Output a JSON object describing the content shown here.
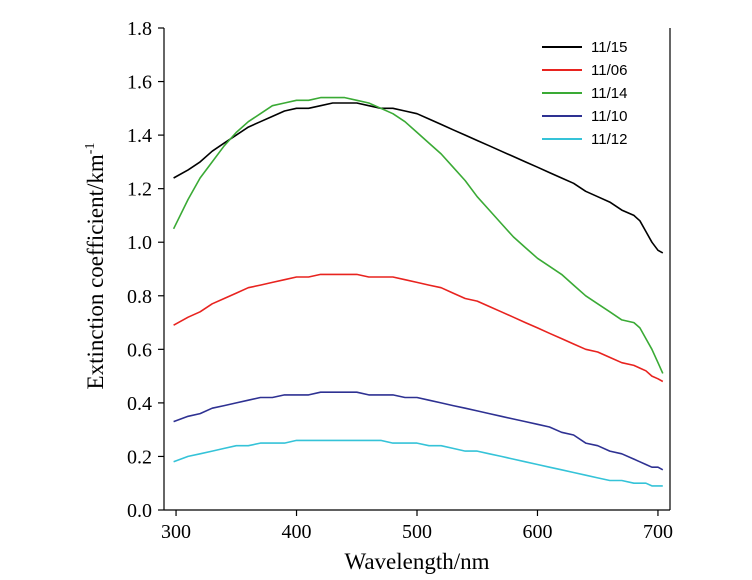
{
  "chart_data": {
    "type": "line",
    "title": "",
    "xlabel": "Wavelength/nm",
    "ylabel_main": "Extinction coefficient/km",
    "ylabel_sup": "-1",
    "xlim": [
      290,
      710
    ],
    "ylim": [
      0.0,
      1.8
    ],
    "xticks": [
      300,
      400,
      500,
      600,
      700
    ],
    "xtick_labels": [
      "300",
      "400",
      "500",
      "600",
      "700"
    ],
    "yticks": [
      0.0,
      0.2,
      0.4,
      0.6,
      0.8,
      1.0,
      1.2,
      1.4,
      1.6,
      1.8
    ],
    "ytick_labels": [
      "0.0",
      "0.2",
      "0.4",
      "0.6",
      "0.8",
      "1.0",
      "1.2",
      "1.4",
      "1.6",
      "1.8"
    ],
    "grid": false,
    "legend_position": "top-right",
    "series": [
      {
        "name": "11/15",
        "color": "#000000",
        "x": [
          298,
          310,
          320,
          330,
          340,
          350,
          360,
          370,
          380,
          390,
          400,
          410,
          420,
          430,
          440,
          450,
          460,
          470,
          480,
          490,
          500,
          510,
          520,
          530,
          540,
          550,
          560,
          570,
          580,
          590,
          600,
          610,
          620,
          630,
          640,
          650,
          660,
          670,
          680,
          685,
          690,
          695,
          700,
          704
        ],
        "y": [
          1.24,
          1.27,
          1.3,
          1.34,
          1.37,
          1.4,
          1.43,
          1.45,
          1.47,
          1.49,
          1.5,
          1.5,
          1.51,
          1.52,
          1.52,
          1.52,
          1.51,
          1.5,
          1.5,
          1.49,
          1.48,
          1.46,
          1.44,
          1.42,
          1.4,
          1.38,
          1.36,
          1.34,
          1.32,
          1.3,
          1.28,
          1.26,
          1.24,
          1.22,
          1.19,
          1.17,
          1.15,
          1.12,
          1.1,
          1.08,
          1.04,
          1.0,
          0.97,
          0.96
        ]
      },
      {
        "name": "11/06",
        "color": "#e8231f",
        "x": [
          298,
          310,
          320,
          330,
          340,
          350,
          360,
          370,
          380,
          390,
          400,
          410,
          420,
          430,
          440,
          450,
          460,
          470,
          480,
          490,
          500,
          510,
          520,
          530,
          540,
          550,
          560,
          570,
          580,
          590,
          600,
          610,
          620,
          630,
          640,
          650,
          660,
          670,
          680,
          685,
          690,
          695,
          700,
          704
        ],
        "y": [
          0.69,
          0.72,
          0.74,
          0.77,
          0.79,
          0.81,
          0.83,
          0.84,
          0.85,
          0.86,
          0.87,
          0.87,
          0.88,
          0.88,
          0.88,
          0.88,
          0.87,
          0.87,
          0.87,
          0.86,
          0.85,
          0.84,
          0.83,
          0.81,
          0.79,
          0.78,
          0.76,
          0.74,
          0.72,
          0.7,
          0.68,
          0.66,
          0.64,
          0.62,
          0.6,
          0.59,
          0.57,
          0.55,
          0.54,
          0.53,
          0.52,
          0.5,
          0.49,
          0.48
        ]
      },
      {
        "name": "11/14",
        "color": "#3aaa35",
        "x": [
          298,
          310,
          320,
          330,
          340,
          350,
          360,
          370,
          380,
          390,
          400,
          410,
          420,
          430,
          440,
          450,
          460,
          470,
          480,
          490,
          500,
          510,
          520,
          530,
          540,
          550,
          560,
          570,
          580,
          590,
          600,
          610,
          620,
          630,
          640,
          650,
          660,
          670,
          680,
          685,
          690,
          695,
          700,
          704
        ],
        "y": [
          1.05,
          1.16,
          1.24,
          1.3,
          1.36,
          1.41,
          1.45,
          1.48,
          1.51,
          1.52,
          1.53,
          1.53,
          1.54,
          1.54,
          1.54,
          1.53,
          1.52,
          1.5,
          1.48,
          1.45,
          1.41,
          1.37,
          1.33,
          1.28,
          1.23,
          1.17,
          1.12,
          1.07,
          1.02,
          0.98,
          0.94,
          0.91,
          0.88,
          0.84,
          0.8,
          0.77,
          0.74,
          0.71,
          0.7,
          0.68,
          0.64,
          0.6,
          0.55,
          0.51
        ]
      },
      {
        "name": "11/10",
        "color": "#2e3192",
        "x": [
          298,
          310,
          320,
          330,
          340,
          350,
          360,
          370,
          380,
          390,
          400,
          410,
          420,
          430,
          440,
          450,
          460,
          470,
          480,
          490,
          500,
          510,
          520,
          530,
          540,
          550,
          560,
          570,
          580,
          590,
          600,
          610,
          620,
          630,
          640,
          650,
          660,
          670,
          680,
          685,
          690,
          695,
          700,
          704
        ],
        "y": [
          0.33,
          0.35,
          0.36,
          0.38,
          0.39,
          0.4,
          0.41,
          0.42,
          0.42,
          0.43,
          0.43,
          0.43,
          0.44,
          0.44,
          0.44,
          0.44,
          0.43,
          0.43,
          0.43,
          0.42,
          0.42,
          0.41,
          0.4,
          0.39,
          0.38,
          0.37,
          0.36,
          0.35,
          0.34,
          0.33,
          0.32,
          0.31,
          0.29,
          0.28,
          0.25,
          0.24,
          0.22,
          0.21,
          0.19,
          0.18,
          0.17,
          0.16,
          0.16,
          0.15
        ]
      },
      {
        "name": "11/12",
        "color": "#35c3d8",
        "x": [
          298,
          310,
          320,
          330,
          340,
          350,
          360,
          370,
          380,
          390,
          400,
          410,
          420,
          430,
          440,
          450,
          460,
          470,
          480,
          490,
          500,
          510,
          520,
          530,
          540,
          550,
          560,
          570,
          580,
          590,
          600,
          610,
          620,
          630,
          640,
          650,
          660,
          670,
          680,
          685,
          690,
          695,
          700,
          704
        ],
        "y": [
          0.18,
          0.2,
          0.21,
          0.22,
          0.23,
          0.24,
          0.24,
          0.25,
          0.25,
          0.25,
          0.26,
          0.26,
          0.26,
          0.26,
          0.26,
          0.26,
          0.26,
          0.26,
          0.25,
          0.25,
          0.25,
          0.24,
          0.24,
          0.23,
          0.22,
          0.22,
          0.21,
          0.2,
          0.19,
          0.18,
          0.17,
          0.16,
          0.15,
          0.14,
          0.13,
          0.12,
          0.11,
          0.11,
          0.1,
          0.1,
          0.1,
          0.09,
          0.09,
          0.09
        ]
      }
    ]
  }
}
